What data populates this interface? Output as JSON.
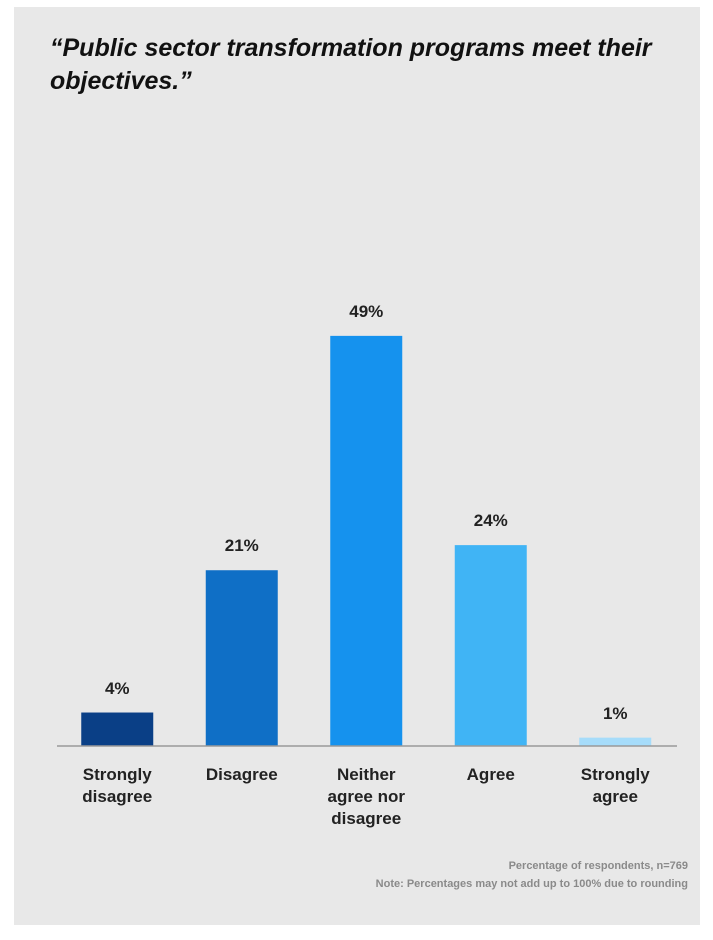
{
  "chart_data": {
    "type": "bar",
    "title": "“Public sector transformation programs meet their objectives.”",
    "categories": [
      "Strongly disagree",
      "Disagree",
      "Neither agree nor disagree",
      "Agree",
      "Strongly agree"
    ],
    "values": [
      4,
      21,
      49,
      24,
      1
    ],
    "value_labels": [
      "4%",
      "21%",
      "49%",
      "24%",
      "1%"
    ],
    "colors": [
      "#0a3f86",
      "#0f6fc6",
      "#1592ee",
      "#40b4f5",
      "#a6dcfa"
    ],
    "notes": [
      "Percentage of respondents, n=769",
      "Note: Percentages may not add up to 100% due to rounding"
    ]
  }
}
